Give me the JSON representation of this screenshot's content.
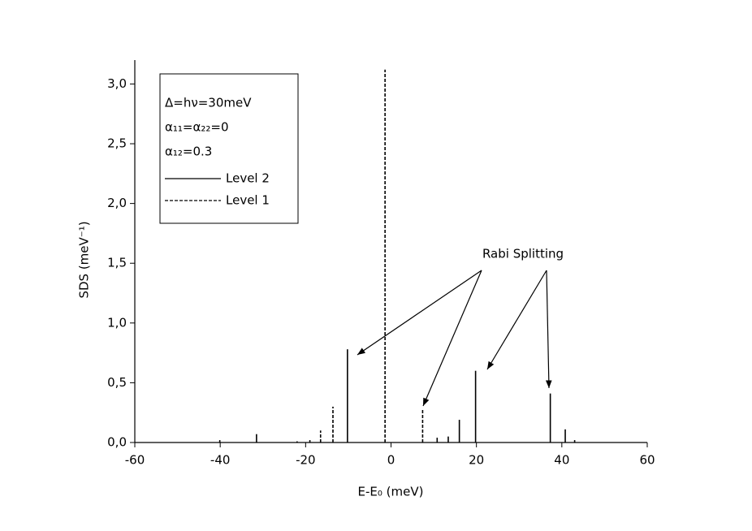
{
  "chart_data": {
    "type": "spike",
    "xlabel": "E-E₀ (meV)",
    "ylabel": "SDS (meV⁻¹)",
    "xlim": [
      -60,
      60
    ],
    "xticks": [
      -60,
      -40,
      -20,
      0,
      20,
      40,
      60
    ],
    "ylim": [
      0,
      3.2
    ],
    "yticks": [
      {
        "value": 0,
        "label": "0,0"
      },
      {
        "value": 0.5,
        "label": "0,5"
      },
      {
        "value": 1,
        "label": "1,0"
      },
      {
        "value": 1.5,
        "label": "1,5"
      },
      {
        "value": 2,
        "label": "2,0"
      },
      {
        "value": 2.5,
        "label": "2,5"
      },
      {
        "value": 3,
        "label": "3,0"
      }
    ],
    "legend_text": [
      "Δ=hν=30meV",
      "α₁₁=α₂₂=0",
      "α₁₂=0.3"
    ],
    "annotations": [
      "Rabi Splitting"
    ],
    "series": [
      {
        "name": "Level 2",
        "color": "#000000",
        "linestyle": "solid",
        "x": [
          -40.1,
          -31.5,
          -10.2,
          10.8,
          13.4,
          16.0,
          19.8,
          37.3,
          40.8,
          43.0
        ],
        "values": [
          0.02,
          0.07,
          0.78,
          0.04,
          0.05,
          0.19,
          0.6,
          0.41,
          0.11,
          0.02
        ]
      },
      {
        "name": "Level 1",
        "color": "#000000",
        "linestyle": "dashed",
        "x": [
          -22.0,
          -19.0,
          -16.5,
          -13.6,
          -1.4,
          7.4
        ],
        "values": [
          0.01,
          0.02,
          0.1,
          0.3,
          3.12,
          0.28
        ]
      }
    ]
  }
}
